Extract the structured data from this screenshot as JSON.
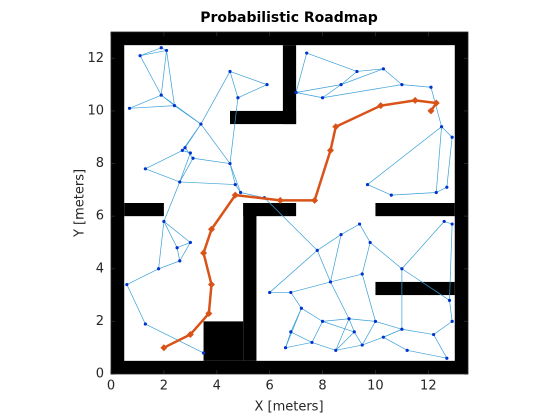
{
  "chart_data": {
    "type": "prm",
    "title": "Probabilistic Roadmap",
    "x_label": "X [meters]",
    "y_label": "Y [meters]",
    "xlim": [
      0,
      13.5
    ],
    "ylim": [
      0,
      13
    ],
    "xticks": [
      0,
      2,
      4,
      6,
      8,
      10,
      12
    ],
    "yticks": [
      0,
      2,
      4,
      6,
      8,
      10,
      12
    ],
    "obstacle_color": "#000000",
    "node_color": "#0033cc",
    "edge_color": "#3aa0d8",
    "path_color": "#d95319",
    "obstacles": [
      [
        0,
        0,
        0.5,
        13
      ],
      [
        0,
        12.5,
        13.5,
        13
      ],
      [
        13,
        0,
        13.5,
        13
      ],
      [
        0,
        0,
        13.5,
        0.5
      ],
      [
        6.5,
        9.5,
        7,
        12.5
      ],
      [
        4.5,
        9.5,
        7,
        10
      ],
      [
        0.5,
        6,
        2,
        6.5
      ],
      [
        5,
        6,
        7,
        6.5
      ],
      [
        5,
        0.5,
        5.5,
        6.5
      ],
      [
        3.5,
        0.5,
        5,
        2
      ],
      [
        10,
        6,
        13,
        6.5
      ],
      [
        10,
        3,
        13,
        3.5
      ]
    ],
    "nodes": {
      "x": [
        1.1,
        1.9,
        2.1,
        0.7,
        1.9,
        2.4,
        3.4,
        2.7,
        2.8,
        1.3,
        2.6,
        3.1,
        4.5,
        4.7,
        4.9,
        5.8,
        4.5,
        5.9,
        4.8,
        3.0,
        7.4,
        9.3,
        10.3,
        11.0,
        12.1,
        7.0,
        8.0,
        8.7,
        12.5,
        12.9,
        10.6,
        12.3,
        12.7,
        9.7,
        2.0,
        3.0,
        1.8,
        2.6,
        0.6,
        1.3,
        3.5,
        2.5,
        7.8,
        8.7,
        9.4,
        9.8,
        11.0,
        12.6,
        12.9,
        6.0,
        6.8,
        8.3,
        9.5,
        7.2,
        8.0,
        9.0,
        10.0,
        11.0,
        12.2,
        12.9,
        6.6,
        7.6,
        8.5,
        9.5,
        10.3,
        11.2,
        12.7,
        12.8,
        6.8,
        9.2
      ],
      "y": [
        12.1,
        12.4,
        12.3,
        10.1,
        10.6,
        10.2,
        9.5,
        8.5,
        8.6,
        7.8,
        7.3,
        8.2,
        8.0,
        7.2,
        6.9,
        6.7,
        11.5,
        11.0,
        10.5,
        8.4,
        12.2,
        11.5,
        11.6,
        11.0,
        10.9,
        10.7,
        10.5,
        11.0,
        9.4,
        9.0,
        6.8,
        6.9,
        7.1,
        7.2,
        5.8,
        5.0,
        4.0,
        4.3,
        3.4,
        1.9,
        0.8,
        4.8,
        4.7,
        5.3,
        5.7,
        5.0,
        4.0,
        5.8,
        5.7,
        3.1,
        3.1,
        3.5,
        3.8,
        2.5,
        2.0,
        2.1,
        2.0,
        1.7,
        1.5,
        2.0,
        1.0,
        1.2,
        0.9,
        1.1,
        1.4,
        0.9,
        0.6,
        2.8,
        1.6,
        1.6
      ]
    },
    "edges": [
      [
        0,
        1
      ],
      [
        0,
        2
      ],
      [
        1,
        2
      ],
      [
        0,
        4
      ],
      [
        2,
        4
      ],
      [
        2,
        5
      ],
      [
        3,
        4
      ],
      [
        3,
        5
      ],
      [
        4,
        5
      ],
      [
        5,
        6
      ],
      [
        4,
        6
      ],
      [
        6,
        7
      ],
      [
        6,
        8
      ],
      [
        7,
        8
      ],
      [
        7,
        9
      ],
      [
        8,
        11
      ],
      [
        9,
        10
      ],
      [
        10,
        11
      ],
      [
        11,
        12
      ],
      [
        12,
        13
      ],
      [
        13,
        14
      ],
      [
        14,
        15
      ],
      [
        12,
        14
      ],
      [
        6,
        12
      ],
      [
        16,
        18
      ],
      [
        16,
        17
      ],
      [
        17,
        18
      ],
      [
        18,
        12
      ],
      [
        16,
        6
      ],
      [
        19,
        7
      ],
      [
        19,
        10
      ],
      [
        10,
        13
      ],
      [
        20,
        21
      ],
      [
        20,
        25
      ],
      [
        21,
        22
      ],
      [
        22,
        23
      ],
      [
        23,
        24
      ],
      [
        25,
        26
      ],
      [
        26,
        27
      ],
      [
        27,
        21
      ],
      [
        27,
        22
      ],
      [
        26,
        23
      ],
      [
        24,
        28
      ],
      [
        28,
        29
      ],
      [
        29,
        32
      ],
      [
        28,
        31
      ],
      [
        31,
        32
      ],
      [
        30,
        31
      ],
      [
        30,
        33
      ],
      [
        33,
        28
      ],
      [
        25,
        27
      ],
      [
        34,
        35
      ],
      [
        35,
        41
      ],
      [
        41,
        37
      ],
      [
        37,
        36
      ],
      [
        36,
        38
      ],
      [
        38,
        39
      ],
      [
        39,
        40
      ],
      [
        34,
        36
      ],
      [
        35,
        37
      ],
      [
        34,
        41
      ],
      [
        10,
        34
      ],
      [
        15,
        42
      ],
      [
        42,
        43
      ],
      [
        43,
        44
      ],
      [
        44,
        45
      ],
      [
        45,
        46
      ],
      [
        46,
        47
      ],
      [
        47,
        48
      ],
      [
        42,
        49
      ],
      [
        49,
        50
      ],
      [
        50,
        51
      ],
      [
        51,
        52
      ],
      [
        52,
        45
      ],
      [
        42,
        51
      ],
      [
        50,
        53
      ],
      [
        53,
        54
      ],
      [
        54,
        55
      ],
      [
        55,
        56
      ],
      [
        56,
        57
      ],
      [
        57,
        58
      ],
      [
        58,
        59
      ],
      [
        59,
        67
      ],
      [
        67,
        48
      ],
      [
        60,
        61
      ],
      [
        61,
        62
      ],
      [
        62,
        63
      ],
      [
        63,
        64
      ],
      [
        64,
        65
      ],
      [
        65,
        66
      ],
      [
        66,
        58
      ],
      [
        53,
        60
      ],
      [
        54,
        61
      ],
      [
        55,
        62
      ],
      [
        56,
        63
      ],
      [
        57,
        64
      ],
      [
        68,
        53
      ],
      [
        68,
        60
      ],
      [
        69,
        55
      ],
      [
        69,
        63
      ],
      [
        51,
        55
      ],
      [
        52,
        56
      ],
      [
        46,
        57
      ],
      [
        46,
        67
      ],
      [
        43,
        51
      ],
      [
        54,
        69
      ],
      [
        61,
        68
      ],
      [
        62,
        69
      ],
      [
        64,
        57
      ]
    ],
    "path": {
      "x": [
        2.0,
        3.0,
        3.7,
        3.8,
        3.5,
        3.8,
        4.7,
        6.4,
        7.7,
        8.3,
        8.5,
        10.2,
        11.5,
        12.3,
        12.1
      ],
      "y": [
        1.0,
        1.5,
        2.3,
        3.4,
        4.6,
        5.5,
        6.8,
        6.6,
        6.6,
        8.5,
        9.4,
        10.2,
        10.4,
        10.3,
        10.0
      ]
    }
  }
}
